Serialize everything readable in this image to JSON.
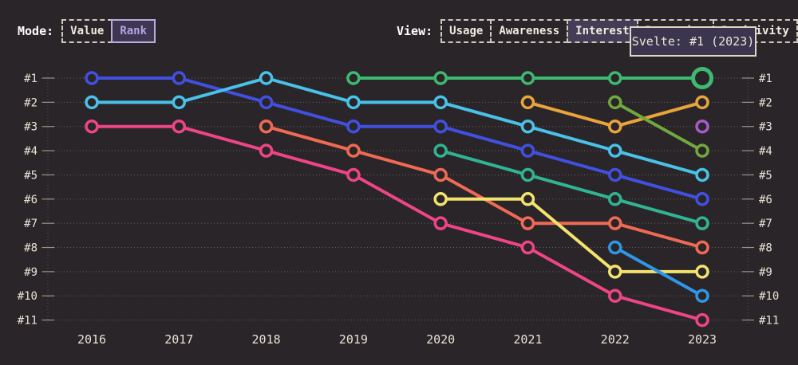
{
  "controls": {
    "mode": {
      "label": "Mode:",
      "options": [
        {
          "label": "Value",
          "selected": false
        },
        {
          "label": "Rank",
          "selected": true
        }
      ]
    },
    "view": {
      "label": "View:",
      "options": [
        {
          "label": "Usage",
          "selected": false
        },
        {
          "label": "Awareness",
          "selected": false
        },
        {
          "label": "Interest",
          "selected": true
        },
        {
          "label": "Retention",
          "selected": false
        },
        {
          "label": "Positivity",
          "selected": false
        }
      ]
    }
  },
  "tooltip": {
    "text": "Svelte: #1 (2023)"
  },
  "colors": {
    "background": "#2a2528",
    "grid": "#6b655f",
    "axis": "#57524d",
    "tick": "#9a948c",
    "label": "#e9e3d6",
    "accent_selected": "#b5a2e6",
    "tooltip_border": "#ded7c2",
    "tooltip_bg": "#3b3550"
  },
  "chart_data": {
    "type": "line",
    "subtype": "bump-rank-chart",
    "title": "",
    "xlabel": "",
    "ylabel": "",
    "grid": "dotted",
    "legend_position": "none",
    "x": [
      2016,
      2017,
      2018,
      2019,
      2020,
      2021,
      2022,
      2023
    ],
    "y_ticks": [
      "#1",
      "#2",
      "#3",
      "#4",
      "#5",
      "#6",
      "#7",
      "#8",
      "#9",
      "#10",
      "#11"
    ],
    "y_axis_inverted": true,
    "ylim": [
      1,
      11
    ],
    "series": [
      {
        "name": "series-indigo",
        "color": "#4150e0",
        "ranks": [
          1,
          1,
          2,
          3,
          3,
          4,
          5,
          6
        ]
      },
      {
        "name": "series-cyan",
        "color": "#49c1e8",
        "ranks": [
          2,
          2,
          1,
          2,
          2,
          3,
          4,
          5
        ]
      },
      {
        "name": "series-pink",
        "color": "#ed4585",
        "ranks": [
          3,
          3,
          4,
          5,
          7,
          8,
          10,
          11
        ]
      },
      {
        "name": "series-coral",
        "color": "#ef6a55",
        "ranks": [
          null,
          null,
          3,
          4,
          5,
          7,
          7,
          8
        ]
      },
      {
        "name": "Svelte",
        "color": "#3dba70",
        "ranks": [
          null,
          null,
          null,
          1,
          1,
          1,
          1,
          1
        ]
      },
      {
        "name": "series-teal",
        "color": "#30b493",
        "ranks": [
          null,
          null,
          null,
          null,
          4,
          5,
          6,
          7
        ]
      },
      {
        "name": "series-yellow",
        "color": "#f2e26e",
        "ranks": [
          null,
          null,
          null,
          null,
          6,
          6,
          9,
          9
        ]
      },
      {
        "name": "series-orange",
        "color": "#e9a43c",
        "ranks": [
          null,
          null,
          null,
          null,
          null,
          2,
          3,
          2
        ]
      },
      {
        "name": "series-olive",
        "color": "#70a83d",
        "ranks": [
          null,
          null,
          null,
          null,
          null,
          null,
          2,
          4
        ]
      },
      {
        "name": "series-azure",
        "color": "#2e97e6",
        "ranks": [
          null,
          null,
          null,
          null,
          null,
          null,
          8,
          10
        ]
      },
      {
        "name": "series-purple",
        "color": "#a55bc8",
        "ranks": [
          null,
          null,
          null,
          null,
          null,
          null,
          null,
          3
        ]
      }
    ],
    "highlight": {
      "series": "Svelte",
      "year": 2023,
      "rank": 1
    }
  }
}
